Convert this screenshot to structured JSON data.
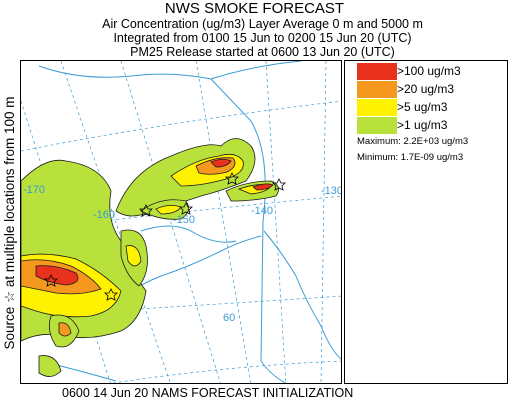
{
  "header": {
    "title": "NWS SMOKE FORECAST",
    "line1": "Air Concentration (ug/m3) Layer Average    0 m and  5000 m",
    "line2": "Integrated from 0100 15 Jun to 0200 15 Jun 20 (UTC)",
    "line3": "PM25 Release started at 0600 13 Jun 20 (UTC)"
  },
  "side_label": "Source ☆ at multiple locations  from  100 m",
  "legend": {
    "items": [
      {
        "label": ">100 ug/m3",
        "color": "#e8321e"
      },
      {
        "label": ">20 ug/m3",
        "color": "#f5981e"
      },
      {
        "label": ">5 ug/m3",
        "color": "#fff200"
      },
      {
        "label": ">1 ug/m3",
        "color": "#b9e13c"
      }
    ],
    "maximum": "Maximum: 2.2E+03 ug/m3",
    "minimum": "Minimum: 1.7E-09 ug/m3"
  },
  "map": {
    "longitude_labels": [
      "-170",
      "-160",
      "-150",
      "-140",
      "-130"
    ],
    "latitude_labels": [
      "60"
    ],
    "colors": {
      "coast": "#3a9bd5",
      "grid": "#3a9bd5"
    }
  },
  "footer": "0600 14 Jun 20 NAMS FORECAST INITIALIZATION"
}
